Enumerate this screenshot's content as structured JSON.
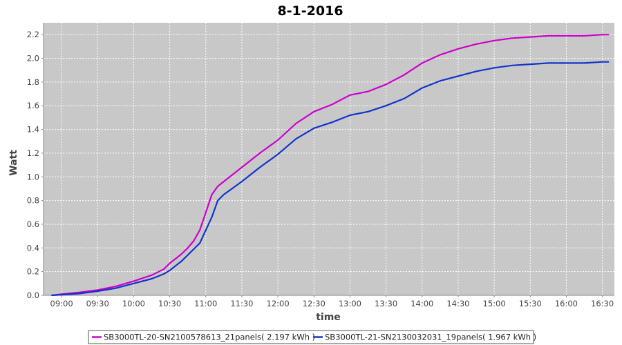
{
  "chart_data": {
    "type": "line",
    "title": "8-1-2016",
    "xlabel": "time",
    "ylabel": "Watt",
    "xlim": [
      "08:45",
      "16:40"
    ],
    "ylim": [
      0,
      2.3
    ],
    "x_ticks": [
      "09:00",
      "09:30",
      "10:00",
      "10:30",
      "11:00",
      "11:30",
      "12:00",
      "12:30",
      "13:00",
      "13:30",
      "14:00",
      "14:30",
      "15:00",
      "15:30",
      "16:00",
      "16:30"
    ],
    "y_ticks": [
      "0.0",
      "0.2",
      "0.4",
      "0.6",
      "0.8",
      "1.0",
      "1.2",
      "1.4",
      "1.6",
      "1.8",
      "2.0",
      "2.2"
    ],
    "grid": true,
    "legend_position": "bottom",
    "colors": {
      "plot_background": "#c8c8c8",
      "grid": "#ffffff"
    },
    "series": [
      {
        "name": "SB3000TL-20-SN2100578613_21panels( 2.197 kWh )",
        "color": "#cc00cc",
        "points": [
          [
            "08:52",
            0.0
          ],
          [
            "09:00",
            0.01
          ],
          [
            "09:15",
            0.025
          ],
          [
            "09:30",
            0.045
          ],
          [
            "09:45",
            0.075
          ],
          [
            "10:00",
            0.12
          ],
          [
            "10:15",
            0.17
          ],
          [
            "10:25",
            0.22
          ],
          [
            "10:30",
            0.27
          ],
          [
            "10:40",
            0.35
          ],
          [
            "10:45",
            0.4
          ],
          [
            "10:50",
            0.46
          ],
          [
            "10:55",
            0.55
          ],
          [
            "11:00",
            0.7
          ],
          [
            "11:05",
            0.85
          ],
          [
            "11:10",
            0.92
          ],
          [
            "11:15",
            0.96
          ],
          [
            "11:30",
            1.08
          ],
          [
            "11:45",
            1.2
          ],
          [
            "12:00",
            1.31
          ],
          [
            "12:15",
            1.45
          ],
          [
            "12:30",
            1.55
          ],
          [
            "12:45",
            1.61
          ],
          [
            "13:00",
            1.69
          ],
          [
            "13:15",
            1.72
          ],
          [
            "13:30",
            1.78
          ],
          [
            "13:45",
            1.86
          ],
          [
            "14:00",
            1.96
          ],
          [
            "14:15",
            2.03
          ],
          [
            "14:30",
            2.08
          ],
          [
            "14:45",
            2.12
          ],
          [
            "15:00",
            2.15
          ],
          [
            "15:15",
            2.17
          ],
          [
            "15:30",
            2.18
          ],
          [
            "15:45",
            2.19
          ],
          [
            "16:00",
            2.19
          ],
          [
            "16:15",
            2.19
          ],
          [
            "16:30",
            2.2
          ],
          [
            "16:35",
            2.2
          ]
        ]
      },
      {
        "name": "SB3000TL-21-SN2130032031_19panels( 1.967 kWh )",
        "color": "#1133cc",
        "points": [
          [
            "08:52",
            0.0
          ],
          [
            "09:00",
            0.005
          ],
          [
            "09:15",
            0.015
          ],
          [
            "09:30",
            0.035
          ],
          [
            "09:45",
            0.06
          ],
          [
            "10:00",
            0.1
          ],
          [
            "10:15",
            0.14
          ],
          [
            "10:25",
            0.18
          ],
          [
            "10:30",
            0.21
          ],
          [
            "10:40",
            0.29
          ],
          [
            "10:45",
            0.34
          ],
          [
            "10:50",
            0.39
          ],
          [
            "10:55",
            0.44
          ],
          [
            "11:00",
            0.55
          ],
          [
            "11:05",
            0.66
          ],
          [
            "11:10",
            0.8
          ],
          [
            "11:15",
            0.85
          ],
          [
            "11:30",
            0.96
          ],
          [
            "11:45",
            1.08
          ],
          [
            "12:00",
            1.19
          ],
          [
            "12:15",
            1.32
          ],
          [
            "12:30",
            1.41
          ],
          [
            "12:45",
            1.46
          ],
          [
            "13:00",
            1.52
          ],
          [
            "13:15",
            1.55
          ],
          [
            "13:30",
            1.6
          ],
          [
            "13:45",
            1.66
          ],
          [
            "14:00",
            1.75
          ],
          [
            "14:15",
            1.81
          ],
          [
            "14:30",
            1.85
          ],
          [
            "14:45",
            1.89
          ],
          [
            "15:00",
            1.92
          ],
          [
            "15:15",
            1.94
          ],
          [
            "15:30",
            1.95
          ],
          [
            "15:45",
            1.96
          ],
          [
            "16:00",
            1.96
          ],
          [
            "16:15",
            1.96
          ],
          [
            "16:30",
            1.97
          ],
          [
            "16:35",
            1.97
          ]
        ]
      }
    ]
  }
}
